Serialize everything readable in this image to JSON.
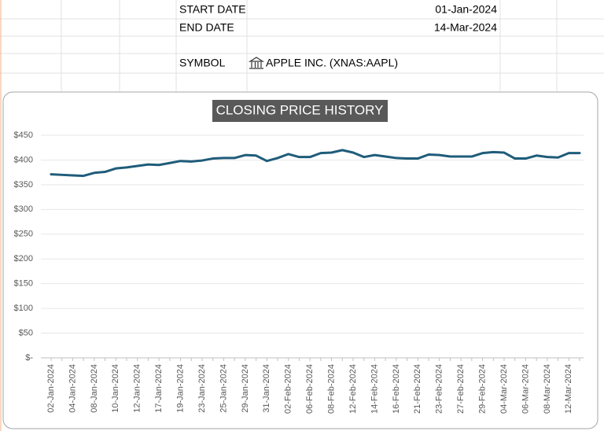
{
  "sheet": {
    "rows": [
      [
        "START DATE",
        "01-Jan-2024"
      ],
      [
        "END DATE",
        "14-Mar-2024"
      ],
      [
        "SYMBOL",
        "APPLE INC. (XNAS:AAPL)"
      ]
    ]
  },
  "chart_data": {
    "type": "line",
    "title": "CLOSING PRICE HISTORY",
    "categories": [
      "02-Jan-2024",
      null,
      "04-Jan-2024",
      null,
      "08-Jan-2024",
      null,
      "10-Jan-2024",
      null,
      "12-Jan-2024",
      null,
      "17-Jan-2024",
      null,
      "19-Jan-2024",
      null,
      "23-Jan-2024",
      null,
      "25-Jan-2024",
      null,
      "29-Jan-2024",
      null,
      "31-Jan-2024",
      null,
      "02-Feb-2024",
      null,
      "06-Feb-2024",
      null,
      "08-Feb-2024",
      null,
      "12-Feb-2024",
      null,
      "14-Feb-2024",
      null,
      "16-Feb-2024",
      null,
      "21-Feb-2024",
      null,
      "23-Feb-2024",
      null,
      "27-Feb-2024",
      null,
      "29-Feb-2024",
      null,
      "04-Mar-2024",
      null,
      "06-Mar-2024",
      null,
      "08-Mar-2024",
      null,
      "12-Mar-2024",
      null
    ],
    "values": [
      371,
      370,
      369,
      368,
      374,
      376,
      383,
      385,
      388,
      391,
      390,
      394,
      398,
      397,
      399,
      403,
      404,
      404,
      410,
      409,
      398,
      404,
      412,
      406,
      406,
      414,
      415,
      420,
      415,
      406,
      410,
      407,
      404,
      403,
      403,
      411,
      410,
      407,
      407,
      407,
      414,
      416,
      415,
      403,
      403,
      409,
      406,
      405,
      414,
      414
    ],
    "color": "#1f5c7a",
    "ylim": [
      0,
      450
    ],
    "yticks": [
      {
        "value": 0,
        "label": "$-"
      },
      {
        "value": 50,
        "label": "$50"
      },
      {
        "value": 100,
        "label": "$100"
      },
      {
        "value": 150,
        "label": "$150"
      },
      {
        "value": 200,
        "label": "$200"
      },
      {
        "value": 250,
        "label": "$250"
      },
      {
        "value": 300,
        "label": "$300"
      },
      {
        "value": 350,
        "label": "$350"
      },
      {
        "value": 400,
        "label": "$400"
      },
      {
        "value": 450,
        "label": "$450"
      }
    ],
    "grid": true
  }
}
